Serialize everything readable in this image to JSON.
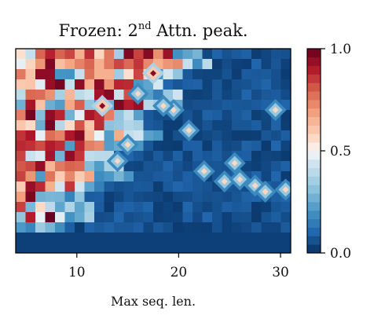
{
  "chart_data": {
    "type": "heatmap",
    "title_main": "Frozen: 2",
    "title_sup": "nd",
    "title_rest": " Attn. peak.",
    "xlabel": "Max seq. len.",
    "ylabel": "",
    "xlim": [
      4,
      31
    ],
    "x_ticks": [
      10,
      20,
      30
    ],
    "y_ticks": [],
    "colorbar": {
      "colormap": "RdBu_r",
      "range": [
        0.0,
        1.0
      ],
      "ticks": [
        {
          "value": 0.0,
          "label": "0.0"
        },
        {
          "value": 0.5,
          "label": "0.5"
        },
        {
          "value": 1.0,
          "label": "1.0"
        }
      ]
    },
    "grid": false,
    "description_values": {
      "high_region": "small max seq. len. (about 4–18), upper rows",
      "low_region": "large max seq. len. (about 20–31) and bottom rows"
    }
  }
}
